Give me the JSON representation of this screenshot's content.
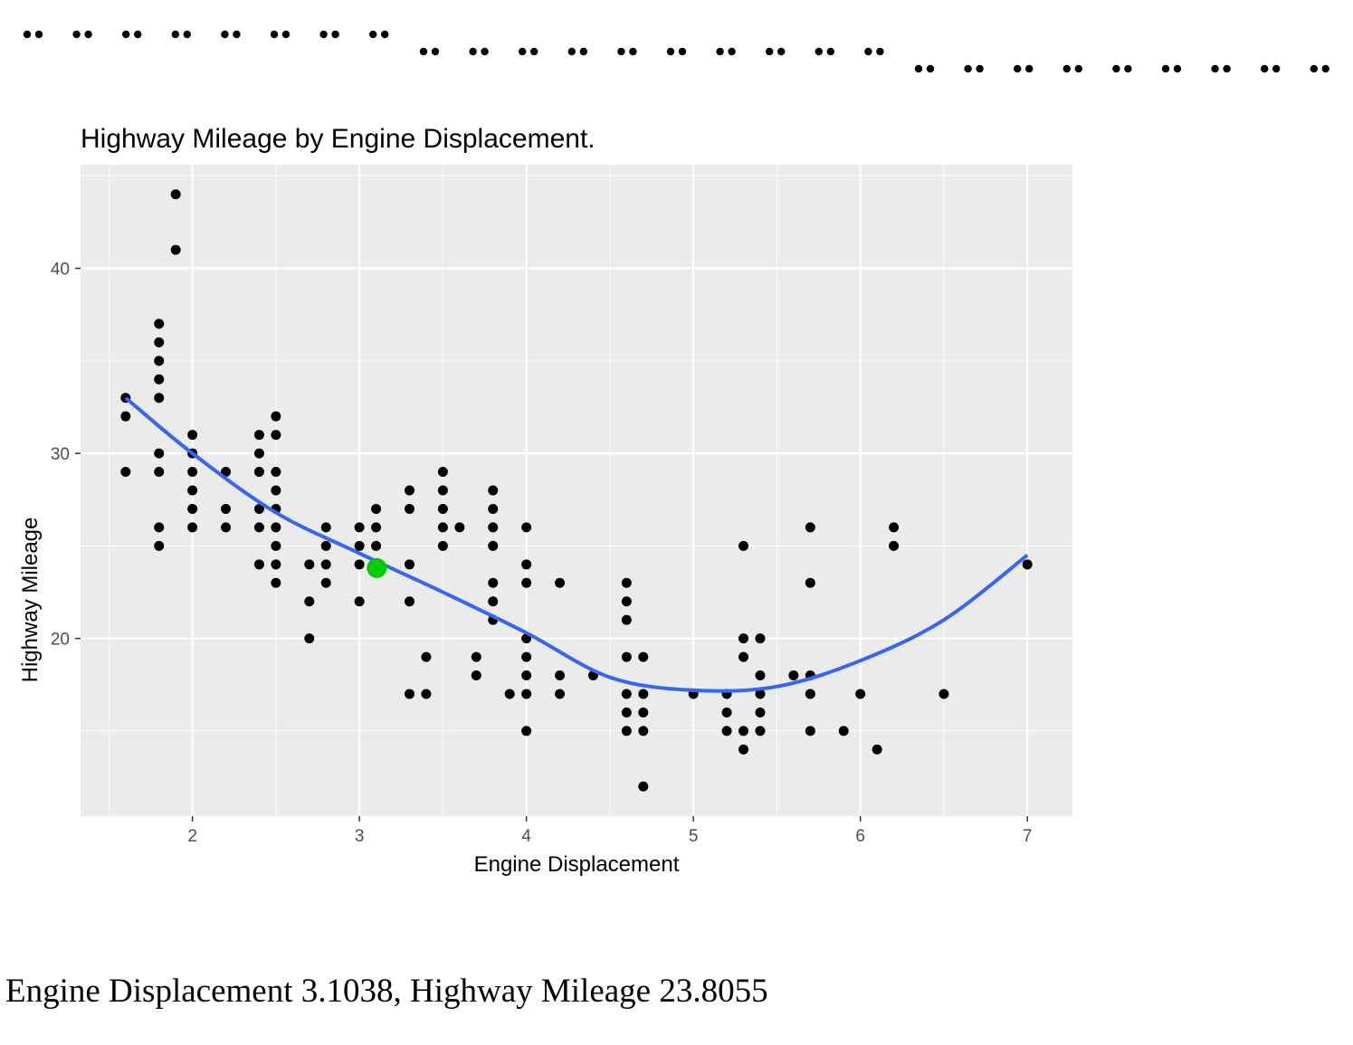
{
  "braille_lines": [
    "⠒⠒⠒⠒⠒⠒⠒⠒",
    "⠒⠒⠒⠒⠒⠒⠒⠒⠒⠒",
    "⠒⠒⠒⠒⠒⠒⠒⠒⠒"
  ],
  "readout": "Engine Displacement 3.1038, Highway Mileage 23.8055",
  "chart_data": {
    "type": "scatter",
    "title": "Highway Mileage by Engine Displacement.",
    "xlabel": "Engine Displacement",
    "ylabel": "Highway Mileage",
    "xlim": [
      1.33,
      7.27
    ],
    "ylim": [
      10.4,
      45.6
    ],
    "xticks": [
      2,
      3,
      4,
      5,
      6,
      7
    ],
    "xtick_labels": [
      "2",
      "3",
      "4",
      "5",
      "6",
      "7"
    ],
    "yticks": [
      20,
      30,
      40
    ],
    "ytick_labels": [
      "20",
      "30",
      "40"
    ],
    "grid": true,
    "colors": {
      "panel": "#ebebeb",
      "grid": "#ffffff",
      "points": "#000000",
      "smooth": "#3366ff",
      "highlight": "#00cc00"
    },
    "points": [
      [
        1.6,
        33
      ],
      [
        1.6,
        32
      ],
      [
        1.6,
        29
      ],
      [
        1.8,
        37
      ],
      [
        1.8,
        36
      ],
      [
        1.8,
        35
      ],
      [
        1.8,
        34
      ],
      [
        1.8,
        33
      ],
      [
        1.8,
        30
      ],
      [
        1.8,
        29
      ],
      [
        1.8,
        26
      ],
      [
        1.8,
        25
      ],
      [
        1.9,
        44
      ],
      [
        1.9,
        41
      ],
      [
        2.0,
        31
      ],
      [
        2.0,
        30
      ],
      [
        2.0,
        29
      ],
      [
        2.0,
        28
      ],
      [
        2.0,
        27
      ],
      [
        2.0,
        26
      ],
      [
        2.2,
        29
      ],
      [
        2.2,
        27
      ],
      [
        2.2,
        26
      ],
      [
        2.4,
        31
      ],
      [
        2.4,
        30
      ],
      [
        2.4,
        29
      ],
      [
        2.4,
        27
      ],
      [
        2.4,
        26
      ],
      [
        2.4,
        24
      ],
      [
        2.5,
        32
      ],
      [
        2.5,
        31
      ],
      [
        2.5,
        29
      ],
      [
        2.5,
        28
      ],
      [
        2.5,
        27
      ],
      [
        2.5,
        26
      ],
      [
        2.5,
        25
      ],
      [
        2.5,
        24
      ],
      [
        2.5,
        23
      ],
      [
        2.7,
        24
      ],
      [
        2.7,
        22
      ],
      [
        2.7,
        20
      ],
      [
        2.8,
        26
      ],
      [
        2.8,
        25
      ],
      [
        2.8,
        24
      ],
      [
        2.8,
        23
      ],
      [
        3.0,
        26
      ],
      [
        3.0,
        25
      ],
      [
        3.0,
        24
      ],
      [
        3.0,
        22
      ],
      [
        3.1,
        27
      ],
      [
        3.1,
        26
      ],
      [
        3.1,
        25
      ],
      [
        3.3,
        28
      ],
      [
        3.3,
        27
      ],
      [
        3.3,
        24
      ],
      [
        3.3,
        22
      ],
      [
        3.3,
        17
      ],
      [
        3.4,
        19
      ],
      [
        3.4,
        17
      ],
      [
        3.5,
        29
      ],
      [
        3.5,
        28
      ],
      [
        3.5,
        27
      ],
      [
        3.5,
        26
      ],
      [
        3.5,
        25
      ],
      [
        3.6,
        26
      ],
      [
        3.7,
        19
      ],
      [
        3.7,
        18
      ],
      [
        3.8,
        28
      ],
      [
        3.8,
        27
      ],
      [
        3.8,
        26
      ],
      [
        3.8,
        25
      ],
      [
        3.8,
        23
      ],
      [
        3.8,
        22
      ],
      [
        3.8,
        21
      ],
      [
        3.9,
        17
      ],
      [
        4.0,
        26
      ],
      [
        4.0,
        24
      ],
      [
        4.0,
        23
      ],
      [
        4.0,
        20
      ],
      [
        4.0,
        19
      ],
      [
        4.0,
        18
      ],
      [
        4.0,
        17
      ],
      [
        4.0,
        15
      ],
      [
        4.2,
        23
      ],
      [
        4.2,
        18
      ],
      [
        4.2,
        17
      ],
      [
        4.4,
        18
      ],
      [
        4.6,
        23
      ],
      [
        4.6,
        22
      ],
      [
        4.6,
        21
      ],
      [
        4.6,
        19
      ],
      [
        4.6,
        17
      ],
      [
        4.6,
        16
      ],
      [
        4.6,
        15
      ],
      [
        4.7,
        19
      ],
      [
        4.7,
        17
      ],
      [
        4.7,
        16
      ],
      [
        4.7,
        15
      ],
      [
        4.7,
        12
      ],
      [
        5.0,
        17
      ],
      [
        5.2,
        17
      ],
      [
        5.2,
        16
      ],
      [
        5.2,
        15
      ],
      [
        5.3,
        25
      ],
      [
        5.3,
        20
      ],
      [
        5.3,
        19
      ],
      [
        5.3,
        15
      ],
      [
        5.3,
        14
      ],
      [
        5.4,
        20
      ],
      [
        5.4,
        18
      ],
      [
        5.4,
        17
      ],
      [
        5.4,
        16
      ],
      [
        5.4,
        15
      ],
      [
        5.6,
        18
      ],
      [
        5.7,
        26
      ],
      [
        5.7,
        23
      ],
      [
        5.7,
        18
      ],
      [
        5.7,
        17
      ],
      [
        5.7,
        15
      ],
      [
        5.9,
        15
      ],
      [
        6.0,
        17
      ],
      [
        6.1,
        14
      ],
      [
        6.2,
        26
      ],
      [
        6.2,
        25
      ],
      [
        6.5,
        17
      ],
      [
        7.0,
        24
      ]
    ],
    "smooth": [
      [
        1.6,
        33.0
      ],
      [
        2.0,
        30.0
      ],
      [
        2.5,
        26.8
      ],
      [
        3.0,
        24.6
      ],
      [
        3.5,
        22.5
      ],
      [
        4.0,
        20.3
      ],
      [
        4.5,
        17.9
      ],
      [
        5.0,
        17.2
      ],
      [
        5.5,
        17.4
      ],
      [
        6.0,
        18.8
      ],
      [
        6.5,
        21.0
      ],
      [
        7.0,
        24.5
      ]
    ],
    "highlight": {
      "x": 3.1038,
      "y": 23.8055
    }
  }
}
